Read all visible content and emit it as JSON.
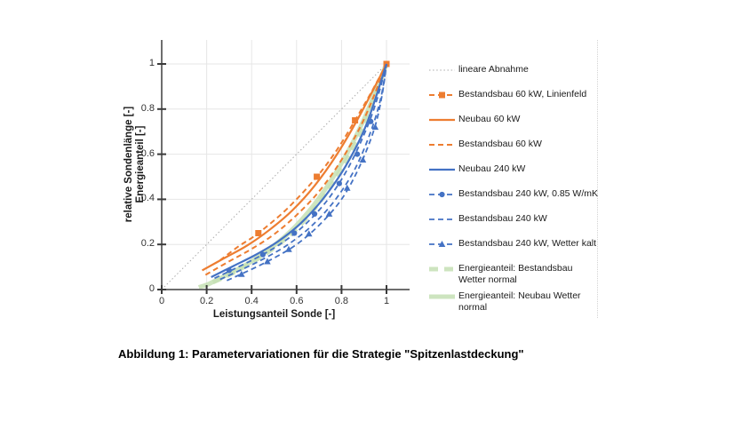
{
  "figure": {
    "caption": "Abbildung 1: Parametervariationen für die Strategie \"Spitzenlastdeckung\""
  },
  "chart_data": {
    "type": "line",
    "title": "",
    "xlabel": "Leistungsanteil Sonde [-]",
    "ylabel_line1": "relative Sondenlänge [-]",
    "ylabel_line2": "Energieanteil [-]",
    "xlim": [
      0,
      1.1
    ],
    "ylim": [
      0,
      1.1
    ],
    "grid": true,
    "legend_position": "right",
    "x_ticks": [
      0,
      0.2,
      0.4,
      0.6,
      0.8,
      1
    ],
    "x_tick_labels": [
      "0",
      "0.2",
      "0.4",
      "0.6",
      "0.8",
      "1"
    ],
    "y_ticks": [
      0,
      0.2,
      0.4,
      0.6,
      0.8,
      1
    ],
    "y_tick_labels": [
      "0",
      "0.2",
      "0.4",
      "0.6",
      "0.8",
      "1"
    ],
    "colors": {
      "orange": "#ED7D31",
      "blue": "#4472C4",
      "green": "#C5E0B4",
      "gray": "#ABABAB",
      "axis": "#6e6e6e",
      "grid": "#e6e6e6",
      "tick": "#3a3a3a"
    },
    "draw_order": [
      0,
      8,
      9,
      1,
      2,
      3,
      4,
      5,
      6,
      7
    ],
    "series": [
      {
        "label": "lineare Abnahme",
        "color": "#ABABAB",
        "style": "dotted",
        "width": 1,
        "marker": "none",
        "opacity": 1,
        "points": [
          [
            0,
            0
          ],
          [
            1,
            1
          ]
        ],
        "markers_at": []
      },
      {
        "label": "Bestandsbau 60 kW, Linienfeld",
        "color": "#ED7D31",
        "style": "dashed",
        "width": 2,
        "marker": "square",
        "opacity": 1,
        "points": [
          [
            0.26,
            0.13
          ],
          [
            0.34,
            0.19
          ],
          [
            0.43,
            0.25
          ],
          [
            0.56,
            0.36
          ],
          [
            0.69,
            0.5
          ],
          [
            0.78,
            0.62
          ],
          [
            0.86,
            0.75
          ],
          [
            0.93,
            0.87
          ],
          [
            1,
            1
          ]
        ],
        "markers_at": [
          [
            0.43,
            0.25
          ],
          [
            0.69,
            0.5
          ],
          [
            0.86,
            0.75
          ],
          [
            1,
            1
          ]
        ]
      },
      {
        "label": "Neubau 60 kW",
        "color": "#ED7D31",
        "style": "solid",
        "width": 2.2,
        "marker": "none",
        "opacity": 1,
        "points": [
          [
            0.18,
            0.085
          ],
          [
            0.28,
            0.14
          ],
          [
            0.38,
            0.195
          ],
          [
            0.48,
            0.265
          ],
          [
            0.58,
            0.35
          ],
          [
            0.68,
            0.46
          ],
          [
            0.78,
            0.6
          ],
          [
            0.88,
            0.77
          ],
          [
            1,
            1
          ]
        ],
        "markers_at": []
      },
      {
        "label": "Bestandsbau 60 kW",
        "color": "#ED7D31",
        "style": "dashed",
        "width": 2,
        "marker": "none",
        "opacity": 1,
        "points": [
          [
            0.195,
            0.065
          ],
          [
            0.3,
            0.125
          ],
          [
            0.4,
            0.18
          ],
          [
            0.5,
            0.245
          ],
          [
            0.6,
            0.33
          ],
          [
            0.7,
            0.435
          ],
          [
            0.8,
            0.575
          ],
          [
            0.9,
            0.755
          ],
          [
            1,
            1
          ]
        ],
        "markers_at": []
      },
      {
        "label": "Neubau 240 kW",
        "color": "#4472C4",
        "style": "solid",
        "width": 2.2,
        "marker": "none",
        "opacity": 1,
        "points": [
          [
            0.22,
            0.055
          ],
          [
            0.32,
            0.105
          ],
          [
            0.42,
            0.155
          ],
          [
            0.52,
            0.215
          ],
          [
            0.62,
            0.295
          ],
          [
            0.72,
            0.405
          ],
          [
            0.82,
            0.55
          ],
          [
            0.91,
            0.73
          ],
          [
            1,
            1
          ]
        ],
        "markers_at": []
      },
      {
        "label": "Bestandsbau 240 kW, 0.85 W/mK",
        "color": "#4472C4",
        "style": "dashed",
        "width": 1.8,
        "marker": "circle",
        "opacity": 1,
        "points": [
          [
            0.235,
            0.05
          ],
          [
            0.34,
            0.1
          ],
          [
            0.44,
            0.15
          ],
          [
            0.54,
            0.21
          ],
          [
            0.64,
            0.29
          ],
          [
            0.74,
            0.4
          ],
          [
            0.83,
            0.54
          ],
          [
            0.91,
            0.71
          ],
          [
            0.96,
            0.85
          ],
          [
            1,
            1
          ]
        ],
        "markers_at": [
          [
            0.3,
            0.085
          ],
          [
            0.45,
            0.155
          ],
          [
            0.59,
            0.25
          ],
          [
            0.68,
            0.335
          ],
          [
            0.79,
            0.47
          ],
          [
            0.87,
            0.6
          ],
          [
            0.93,
            0.745
          ]
        ]
      },
      {
        "label": "Bestandsbau 240 kW",
        "color": "#4472C4",
        "style": "dashed",
        "width": 1.8,
        "marker": "none",
        "opacity": 1,
        "points": [
          [
            0.26,
            0.045
          ],
          [
            0.37,
            0.095
          ],
          [
            0.47,
            0.145
          ],
          [
            0.57,
            0.205
          ],
          [
            0.67,
            0.285
          ],
          [
            0.77,
            0.395
          ],
          [
            0.86,
            0.535
          ],
          [
            0.93,
            0.7
          ],
          [
            0.975,
            0.85
          ],
          [
            1,
            1
          ]
        ],
        "markers_at": []
      },
      {
        "label": "Bestandsbau 240 kW, Wetter kalt",
        "color": "#4472C4",
        "style": "dashed",
        "width": 1.8,
        "marker": "triangle",
        "opacity": 1,
        "points": [
          [
            0.29,
            0.04
          ],
          [
            0.4,
            0.09
          ],
          [
            0.5,
            0.14
          ],
          [
            0.6,
            0.2
          ],
          [
            0.7,
            0.285
          ],
          [
            0.8,
            0.4
          ],
          [
            0.88,
            0.545
          ],
          [
            0.945,
            0.71
          ],
          [
            0.98,
            0.86
          ],
          [
            1,
            1
          ]
        ],
        "markers_at": [
          [
            0.355,
            0.068
          ],
          [
            0.47,
            0.124
          ],
          [
            0.565,
            0.178
          ],
          [
            0.655,
            0.247
          ],
          [
            0.745,
            0.335
          ],
          [
            0.825,
            0.45
          ],
          [
            0.895,
            0.575
          ],
          [
            0.95,
            0.72
          ]
        ]
      },
      {
        "label": "Energieanteil: Bestandsbau Wetter normal",
        "color": "#C5E0B4",
        "style": "greendash",
        "width": 5,
        "marker": "none",
        "opacity": 0.85,
        "points": [
          [
            0.165,
            0.01
          ],
          [
            0.21,
            0.025
          ],
          [
            0.3,
            0.065
          ],
          [
            0.4,
            0.12
          ],
          [
            0.5,
            0.185
          ],
          [
            0.6,
            0.27
          ],
          [
            0.7,
            0.385
          ],
          [
            0.8,
            0.535
          ],
          [
            0.9,
            0.73
          ],
          [
            1,
            1
          ]
        ],
        "markers_at": []
      },
      {
        "label": "Energieanteil: Neubau Wetter normal",
        "color": "#C5E0B4",
        "style": "solid",
        "width": 5,
        "marker": "none",
        "opacity": 0.85,
        "points": [
          [
            0.2,
            0.02
          ],
          [
            0.3,
            0.07
          ],
          [
            0.4,
            0.125
          ],
          [
            0.5,
            0.195
          ],
          [
            0.6,
            0.285
          ],
          [
            0.7,
            0.405
          ],
          [
            0.8,
            0.56
          ],
          [
            0.9,
            0.755
          ],
          [
            1,
            1
          ]
        ],
        "markers_at": []
      }
    ]
  }
}
